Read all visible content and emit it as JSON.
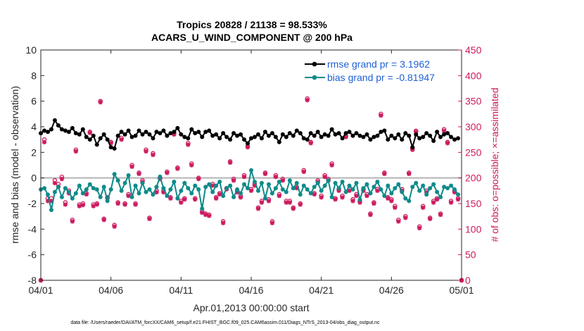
{
  "chart_data": {
    "type": "line",
    "title": "Tropics 20828 / 21138 = 98.533%",
    "subtitle": "ACARS_U_WIND_COMPONENT @ 200 hPa",
    "xlabel": "Apr.01,2013 00:00:00 start",
    "ylabel": "rmse and bias (model - observation)",
    "y2label": "# of obs: o=possible; ×=assimilated",
    "x_ticks": [
      "04/01",
      "04/06",
      "04/11",
      "04/16",
      "04/21",
      "04/26",
      "05/01"
    ],
    "xlim": [
      0,
      30
    ],
    "ylim": [
      -8,
      10
    ],
    "y_ticks": [
      "-8",
      "-6",
      "-4",
      "-2",
      "0",
      "2",
      "4",
      "6",
      "8",
      "10"
    ],
    "y2lim": [
      0,
      450
    ],
    "y2_ticks": [
      "0",
      "50",
      "100",
      "150",
      "200",
      "250",
      "300",
      "350",
      "400",
      "450"
    ],
    "grid": false,
    "legend_position": "top-right",
    "colors": {
      "rmse": "#000000",
      "bias": "#0f8a8a",
      "obs": "#cc1a5e",
      "zero_line": "#b4b4b4",
      "legend_text": "#1f5fd6"
    },
    "series": [
      {
        "name": "rmse grand pr = 3.1962",
        "axis": "left",
        "x": [
          0.0,
          0.25,
          0.5,
          0.75,
          1.0,
          1.25,
          1.5,
          1.75,
          2.0,
          2.25,
          2.5,
          2.75,
          3.0,
          3.25,
          3.5,
          3.75,
          4.0,
          4.25,
          4.5,
          4.75,
          5.0,
          5.25,
          5.5,
          5.75,
          6.0,
          6.25,
          6.5,
          6.75,
          7.0,
          7.25,
          7.5,
          7.75,
          8.0,
          8.25,
          8.5,
          8.75,
          9.0,
          9.25,
          9.5,
          9.75,
          10.0,
          10.25,
          10.5,
          10.75,
          11.0,
          11.25,
          11.5,
          11.75,
          12.0,
          12.25,
          12.5,
          12.75,
          13.0,
          13.25,
          13.5,
          13.75,
          14.0,
          14.25,
          14.5,
          14.75,
          15.0,
          15.25,
          15.5,
          15.75,
          16.0,
          16.25,
          16.5,
          16.75,
          17.0,
          17.25,
          17.5,
          17.75,
          18.0,
          18.25,
          18.5,
          18.75,
          19.0,
          19.25,
          19.5,
          19.75,
          20.0,
          20.25,
          20.5,
          20.75,
          21.0,
          21.25,
          21.5,
          21.75,
          22.0,
          22.25,
          22.5,
          22.75,
          23.0,
          23.25,
          23.5,
          23.75,
          24.0,
          24.25,
          24.5,
          24.75,
          25.0,
          25.25,
          25.5,
          25.75,
          26.0,
          26.25,
          26.5,
          26.75,
          27.0,
          27.25,
          27.5,
          27.75,
          28.0,
          28.25,
          28.5,
          28.75,
          29.0,
          29.25,
          29.5,
          29.75
        ],
        "values": [
          3.5,
          3.7,
          3.6,
          3.8,
          4.5,
          4.1,
          3.8,
          3.7,
          3.6,
          3.9,
          3.5,
          3.4,
          3.8,
          3.2,
          3.0,
          3.3,
          2.6,
          3.1,
          3.4,
          3.0,
          2.4,
          2.3,
          3.3,
          3.6,
          3.4,
          3.7,
          3.2,
          3.3,
          3.7,
          3.4,
          3.6,
          3.4,
          3.1,
          3.6,
          3.5,
          3.7,
          3.3,
          3.5,
          3.6,
          3.9,
          3.4,
          3.2,
          3.1,
          3.8,
          3.5,
          3.6,
          3.2,
          3.6,
          3.7,
          3.3,
          3.4,
          3.1,
          3.5,
          3.2,
          3.0,
          3.5,
          3.3,
          3.4,
          3.0,
          2.7,
          3.1,
          3.2,
          3.4,
          3.1,
          3.6,
          3.3,
          3.5,
          3.2,
          2.8,
          3.4,
          3.2,
          3.5,
          3.3,
          3.7,
          3.5,
          3.1,
          3.0,
          3.5,
          3.3,
          3.6,
          3.2,
          3.4,
          3.3,
          3.8,
          3.4,
          3.5,
          3.1,
          3.5,
          3.6,
          3.3,
          3.5,
          3.3,
          3.2,
          3.4,
          3.0,
          3.2,
          3.3,
          3.6,
          3.7,
          3.0,
          3.3,
          3.1,
          3.4,
          3.0,
          3.5,
          3.3,
          2.4,
          3.4,
          3.1,
          3.2,
          3.5,
          3.3,
          2.9,
          3.6,
          3.2,
          3.4,
          3.5,
          3.2,
          3.0,
          3.1
        ]
      },
      {
        "name": "bias grand pr = -0.81947",
        "axis": "left",
        "x": [
          0.0,
          0.25,
          0.5,
          0.75,
          1.0,
          1.25,
          1.5,
          1.75,
          2.0,
          2.25,
          2.5,
          2.75,
          3.0,
          3.25,
          3.5,
          3.75,
          4.0,
          4.25,
          4.5,
          4.75,
          5.0,
          5.25,
          5.5,
          5.75,
          6.0,
          6.25,
          6.5,
          6.75,
          7.0,
          7.25,
          7.5,
          7.75,
          8.0,
          8.25,
          8.5,
          8.75,
          9.0,
          9.25,
          9.5,
          9.75,
          10.0,
          10.25,
          10.5,
          10.75,
          11.0,
          11.25,
          11.5,
          11.75,
          12.0,
          12.25,
          12.5,
          12.75,
          13.0,
          13.25,
          13.5,
          13.75,
          14.0,
          14.25,
          14.5,
          14.75,
          15.0,
          15.25,
          15.5,
          15.75,
          16.0,
          16.25,
          16.5,
          16.75,
          17.0,
          17.25,
          17.5,
          17.75,
          18.0,
          18.25,
          18.5,
          18.75,
          19.0,
          19.25,
          19.5,
          19.75,
          20.0,
          20.25,
          20.5,
          20.75,
          21.0,
          21.25,
          21.5,
          21.75,
          22.0,
          22.25,
          22.5,
          22.75,
          23.0,
          23.25,
          23.5,
          23.75,
          24.0,
          24.25,
          24.5,
          24.75,
          25.0,
          25.25,
          25.5,
          25.75,
          26.0,
          26.25,
          26.5,
          26.75,
          27.0,
          27.25,
          27.5,
          27.75,
          28.0,
          28.25,
          28.5,
          28.75,
          29.0,
          29.25,
          29.5,
          29.75
        ],
        "values": [
          -0.9,
          -0.8,
          -1.3,
          -2.5,
          -1.1,
          -0.7,
          -1.5,
          -0.8,
          -1.1,
          -1.6,
          -1.2,
          -0.6,
          -1.2,
          -0.9,
          -0.5,
          -0.8,
          -0.9,
          -1.5,
          -0.7,
          -1.8,
          -0.9,
          0.3,
          -0.2,
          -1.0,
          -0.4,
          0.2,
          -1.5,
          -0.6,
          -1.2,
          -0.4,
          -1.1,
          -0.9,
          -1.3,
          -0.7,
          0.1,
          -0.8,
          -1.4,
          -0.9,
          -0.3,
          -1.6,
          -1.0,
          -0.4,
          -0.8,
          -1.2,
          -0.6,
          -0.9,
          -2.4,
          -0.7,
          -0.5,
          -1.1,
          -0.6,
          -0.3,
          -1.4,
          -0.8,
          -0.6,
          -1.5,
          -0.9,
          -1.2,
          -0.5,
          -0.8,
          0.6,
          -0.3,
          -1.0,
          -0.4,
          -1.6,
          -0.5,
          -1.2,
          -0.8,
          -0.3,
          -0.9,
          -1.1,
          -0.2,
          -0.8,
          -0.4,
          -1.3,
          -0.6,
          -0.9,
          -1.2,
          -0.7,
          -0.4,
          -1.0,
          -0.6,
          -0.2,
          -1.5,
          -0.4,
          -0.8,
          -0.3,
          -1.1,
          -0.6,
          -0.9,
          -0.4,
          -1.7,
          -0.8,
          -0.5,
          -1.2,
          -0.7,
          -0.3,
          -0.9,
          -1.4,
          -0.6,
          -1.2,
          -0.8,
          -0.5,
          -1.1,
          -1.6,
          -1.8,
          -0.7,
          -0.4,
          -1.0,
          -0.6,
          -1.3,
          -0.8,
          -0.5,
          -1.1,
          -1.5,
          -0.7,
          -0.8,
          -0.6,
          -0.9,
          -1.3
        ]
      }
    ],
    "obs_counts": {
      "name": "# of obs",
      "axis": "right",
      "x": [
        0.0,
        0.25,
        0.5,
        0.75,
        1.0,
        1.25,
        1.5,
        1.75,
        2.0,
        2.25,
        2.5,
        2.75,
        3.0,
        3.25,
        3.5,
        3.75,
        4.0,
        4.25,
        4.5,
        4.75,
        5.0,
        5.25,
        5.5,
        5.75,
        6.0,
        6.25,
        6.5,
        6.75,
        7.0,
        7.25,
        7.5,
        7.75,
        8.0,
        8.25,
        8.5,
        8.75,
        9.0,
        9.25,
        9.5,
        9.75,
        10.0,
        10.25,
        10.5,
        10.75,
        11.0,
        11.25,
        11.5,
        11.75,
        12.0,
        12.25,
        12.5,
        12.75,
        13.0,
        13.25,
        13.5,
        13.75,
        14.0,
        14.25,
        14.5,
        14.75,
        15.0,
        15.25,
        15.5,
        15.75,
        16.0,
        16.25,
        16.5,
        16.75,
        17.0,
        17.25,
        17.5,
        17.75,
        18.0,
        18.25,
        18.5,
        18.75,
        19.0,
        19.25,
        19.5,
        19.75,
        20.0,
        20.25,
        20.5,
        20.75,
        21.0,
        21.25,
        21.5,
        21.75,
        22.0,
        22.25,
        22.5,
        22.75,
        23.0,
        23.25,
        23.5,
        23.75,
        24.0,
        24.25,
        24.5,
        24.75,
        25.0,
        25.25,
        25.5,
        25.75,
        26.0,
        26.25,
        26.5,
        26.75,
        27.0,
        27.25,
        27.5,
        27.75,
        28.0,
        28.25,
        28.5,
        28.75,
        29.0,
        29.25,
        29.5,
        29.75,
        30.0
      ],
      "possible": [
        0,
        275,
        160,
        160,
        195,
        188,
        202,
        152,
        175,
        118,
        255,
        148,
        150,
        170,
        290,
        148,
        150,
        350,
        120,
        162,
        270,
        108,
        152,
        278,
        150,
        168,
        225,
        150,
        210,
        195,
        255,
        122,
        248,
        175,
        200,
        175,
        212,
        162,
        288,
        220,
        155,
        160,
        268,
        228,
        160,
        200,
        135,
        130,
        128,
        188,
        162,
        170,
        115,
        180,
        232,
        198,
        175,
        165,
        205,
        262,
        178,
        188,
        142,
        155,
        210,
        158,
        115,
        205,
        168,
        198,
        155,
        155,
        142,
        182,
        150,
        215,
        355,
        270,
        170,
        195,
        165,
        205,
        198,
        228,
        160,
        178,
        165,
        282,
        178,
        158,
        168,
        155,
        178,
        168,
        130,
        152,
        178,
        325,
        210,
        162,
        158,
        145,
        118,
        178,
        125,
        210,
        258,
        292,
        105,
        145,
        175,
        122,
        155,
        160,
        130,
        295,
        270,
        155,
        175,
        160,
        0
      ],
      "assimilated": [
        0,
        270,
        155,
        155,
        190,
        183,
        198,
        148,
        170,
        115,
        252,
        145,
        147,
        168,
        288,
        145,
        148,
        348,
        118,
        160,
        268,
        105,
        150,
        275,
        148,
        165,
        222,
        148,
        208,
        192,
        252,
        120,
        245,
        172,
        198,
        172,
        210,
        160,
        285,
        218,
        152,
        158,
        265,
        225,
        158,
        198,
        132,
        128,
        126,
        185,
        160,
        168,
        112,
        178,
        230,
        195,
        172,
        162,
        202,
        260,
        175,
        185,
        140,
        152,
        208,
        155,
        112,
        202,
        165,
        195,
        152,
        152,
        140,
        180,
        148,
        212,
        352,
        268,
        168,
        192,
        162,
        202,
        195,
        225,
        158,
        175,
        162,
        280,
        175,
        155,
        165,
        152,
        175,
        165,
        128,
        150,
        175,
        322,
        208,
        160,
        155,
        142,
        115,
        175,
        122,
        208,
        255,
        290,
        102,
        142,
        172,
        120,
        152,
        158,
        128,
        292,
        268,
        152,
        172,
        158,
        0
      ]
    },
    "footer": "data file: /Users/raeder/DAI/ATM_forcXX/CAM6_setup/f.e21.FHIST_BGC.f09_025.CAM6assim.011/Diags_NTrS_2013-04/obs_diag_output.nc"
  }
}
